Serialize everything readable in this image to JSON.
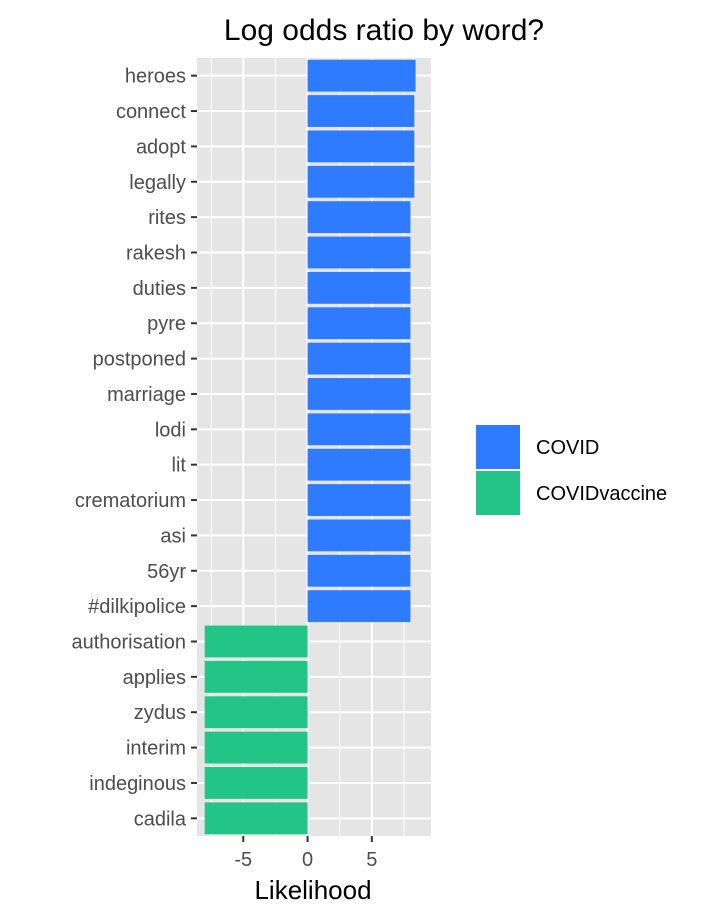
{
  "chart_data": {
    "type": "bar",
    "orientation": "horizontal",
    "title": "Log odds ratio by word?",
    "xlabel": "Likelihood",
    "ylabel": "",
    "xlim": [
      -8.6,
      9.6
    ],
    "xticks": [
      -5,
      0,
      5
    ],
    "grid": true,
    "legend_position": "right",
    "categories": [
      "heroes",
      "connect",
      "adopt",
      "legally",
      "rites",
      "rakesh",
      "duties",
      "pyre",
      "postponed",
      "marriage",
      "lodi",
      "lit",
      "crematorium",
      "asi",
      "56yr",
      "#dilkipolice",
      "authorisation",
      "applies",
      "zydus",
      "interim",
      "indeginous",
      "cadila"
    ],
    "values": [
      8.4,
      8.3,
      8.3,
      8.3,
      8.0,
      8.0,
      8.0,
      8.0,
      8.0,
      8.0,
      8.0,
      8.0,
      8.0,
      8.0,
      8.0,
      8.0,
      -8.0,
      -8.0,
      -8.0,
      -8.0,
      -8.0,
      -8.0
    ],
    "groups": [
      "COVID",
      "COVID",
      "COVID",
      "COVID",
      "COVID",
      "COVID",
      "COVID",
      "COVID",
      "COVID",
      "COVID",
      "COVID",
      "COVID",
      "COVID",
      "COVID",
      "COVID",
      "COVID",
      "COVIDvaccine",
      "COVIDvaccine",
      "COVIDvaccine",
      "COVIDvaccine",
      "COVIDvaccine",
      "COVIDvaccine"
    ],
    "series": [
      {
        "name": "COVID",
        "color": "#2f7bff"
      },
      {
        "name": "COVIDvaccine",
        "color": "#22c487"
      }
    ],
    "panel_color": "#e5e5e5",
    "grid_color": "#ffffff"
  }
}
